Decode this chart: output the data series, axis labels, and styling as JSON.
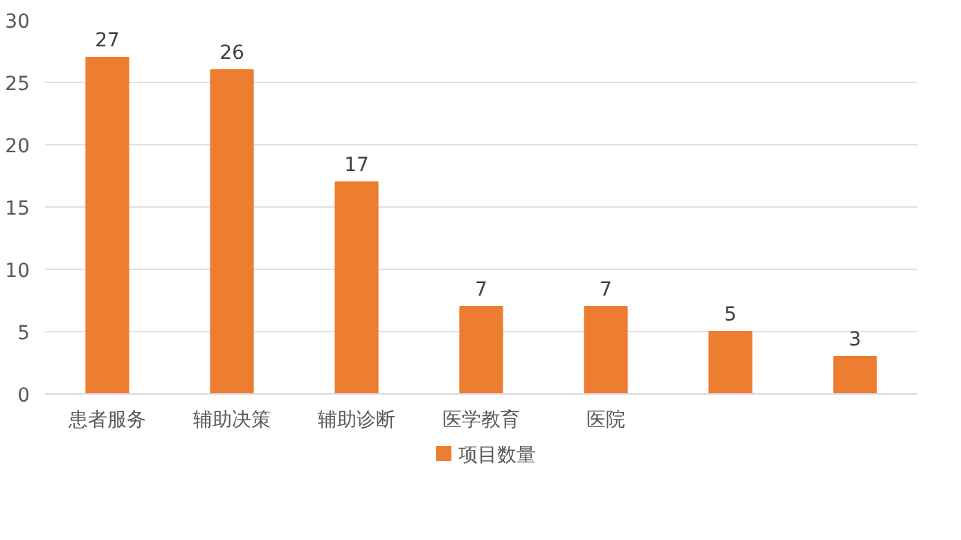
{
  "chart_data": {
    "type": "bar",
    "categories": [
      "患者服务",
      "辅助决策",
      "辅助诊断",
      "医学教育",
      "医院",
      null,
      null
    ],
    "series": [
      {
        "name": "项目数量",
        "color": "#ed7d31",
        "values": [
          27,
          26,
          17,
          7,
          7,
          5,
          3
        ]
      }
    ],
    "ylim": [
      0,
      30
    ],
    "yticks": [
      0,
      5,
      10,
      15,
      20,
      25,
      30
    ],
    "grid": "y",
    "legend": "bottom",
    "data_labels": true
  }
}
